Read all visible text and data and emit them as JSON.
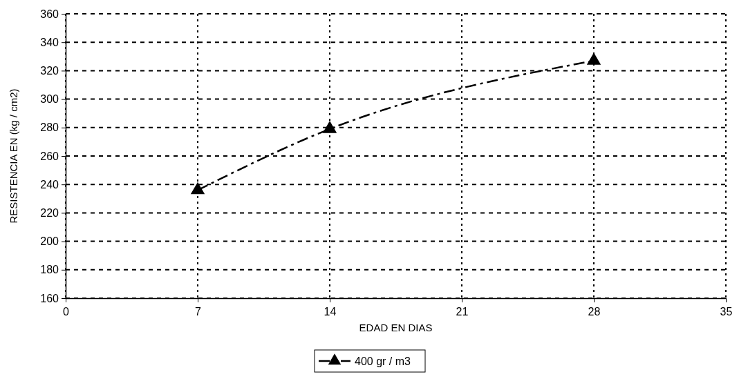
{
  "chart_data": {
    "type": "line",
    "xlabel": "EDAD EN DIAS",
    "ylabel": "RESISTENCIA EN (kg / cm2)",
    "x": [
      7,
      14,
      28
    ],
    "series": [
      {
        "name": "400 gr / m3",
        "color": "#000000",
        "values": [
          236,
          279,
          327
        ]
      }
    ],
    "xlim": [
      0,
      35
    ],
    "xticks": [
      0,
      7,
      14,
      21,
      28,
      35
    ],
    "ylim": [
      160,
      360
    ],
    "yticks": [
      160,
      180,
      200,
      220,
      240,
      260,
      280,
      300,
      320,
      340,
      360
    ],
    "grid": true,
    "legend": "bottom",
    "marker": "triangle",
    "line_style": "dashed"
  }
}
